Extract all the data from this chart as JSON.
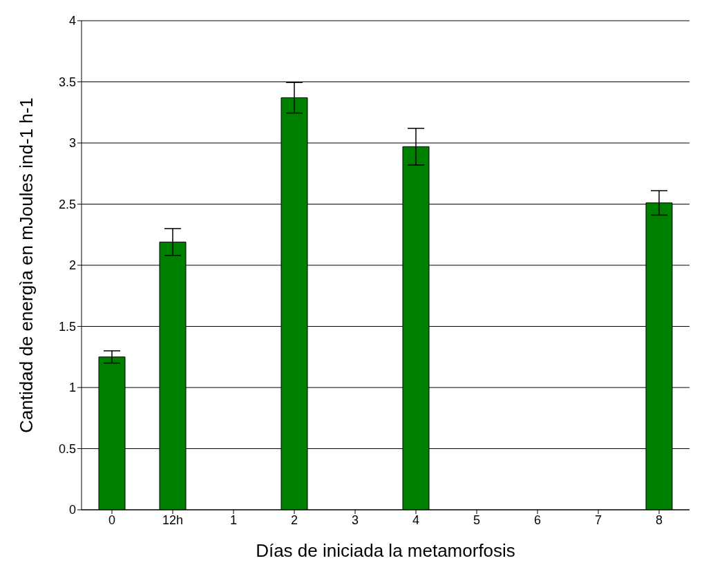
{
  "chart_data": {
    "type": "bar",
    "xlabel": "Días de iniciada la  metamorfosis",
    "ylabel": "Cantidad de energìa en mJoules ind-1 h-1",
    "categories": [
      "0",
      "12h",
      "1",
      "2",
      "3",
      "4",
      "5",
      "6",
      "7",
      "8"
    ],
    "values": [
      1.25,
      2.19,
      null,
      3.37,
      null,
      2.97,
      null,
      null,
      null,
      2.51
    ],
    "errors": [
      0.05,
      0.11,
      null,
      0.125,
      null,
      0.15,
      null,
      null,
      null,
      0.1
    ],
    "color": "#008000",
    "ylim": [
      0,
      4
    ],
    "yticks": [
      0,
      0.5,
      1,
      1.5,
      2,
      2.5,
      3,
      3.5,
      4
    ],
    "grid": "y",
    "legend": false
  }
}
